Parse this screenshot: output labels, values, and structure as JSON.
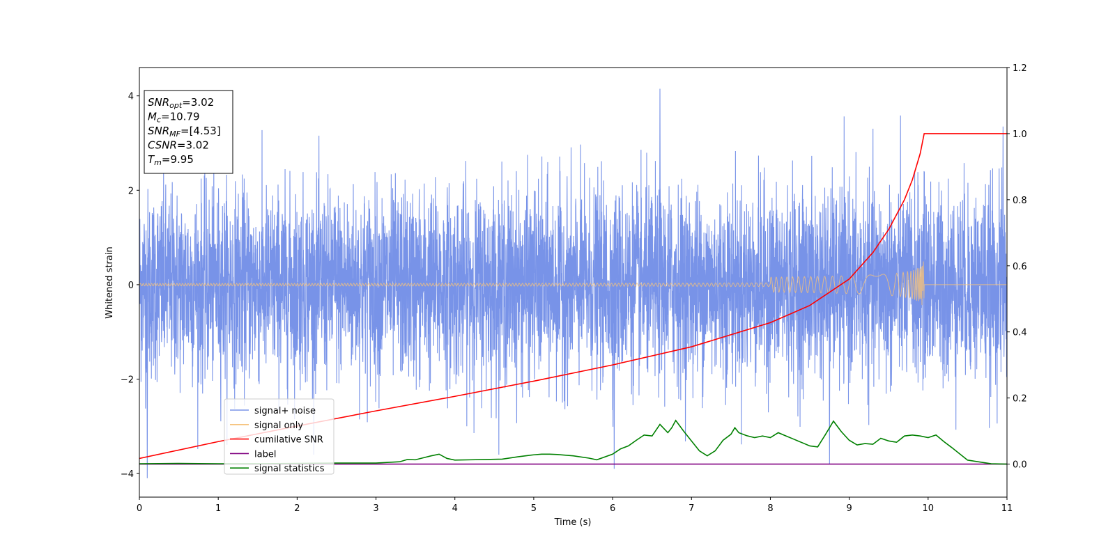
{
  "chart_data": {
    "type": "line",
    "xlabel": "Time (s)",
    "ylabel": "Whitened strain",
    "xlim": [
      0,
      11
    ],
    "ylim": [
      -4.5,
      4.6
    ],
    "y2lim": [
      -0.1,
      1.2
    ],
    "xticks": [
      0,
      1,
      2,
      3,
      4,
      5,
      6,
      7,
      8,
      9,
      10,
      11
    ],
    "yticks": [
      -4,
      -2,
      0,
      2,
      4
    ],
    "y2ticks": [
      "0.0",
      "0.2",
      "0.4",
      "0.6",
      "0.8",
      "1.0",
      "1.2"
    ],
    "legend_position": "lower-left",
    "grid": false,
    "info_box": [
      {
        "name": "SNR",
        "sub": "opt",
        "value": "=3.02"
      },
      {
        "name": "M",
        "sub": "c",
        "value": "=10.79"
      },
      {
        "name": "SNR",
        "sub": "MF",
        "value": "=[4.53]"
      },
      {
        "name": "CSNR",
        "sub": "",
        "value": "=3.02"
      },
      {
        "name": "T",
        "sub": "m",
        "value": "=9.95"
      }
    ],
    "series": [
      {
        "name": "signal+ noise",
        "color": "#7893e8",
        "axis": "left",
        "description_range": [
          -4.1,
          4.2
        ],
        "notable_spikes": [
          {
            "x": 0.1,
            "y": -4.1
          },
          {
            "x": 6.02,
            "y": -3.9
          },
          {
            "x": 6.6,
            "y": 4.15
          },
          {
            "x": 8.75,
            "y": -3.8
          },
          {
            "x": 10.95,
            "y": 3.35
          }
        ]
      },
      {
        "name": "signal only",
        "color": "#f5c27a",
        "axis": "left",
        "chirp_end_x": 9.95,
        "peak_amplitude": 0.5
      },
      {
        "name": "cumilative SNR",
        "color": "#ff0000",
        "axis": "right",
        "x": [
          0,
          1,
          2,
          3,
          4,
          5,
          6,
          7,
          8,
          8.5,
          9,
          9.3,
          9.5,
          9.7,
          9.8,
          9.9,
          9.95,
          11
        ],
        "values": [
          0.017,
          0.068,
          0.115,
          0.161,
          0.205,
          0.251,
          0.3,
          0.355,
          0.428,
          0.48,
          0.56,
          0.64,
          0.71,
          0.8,
          0.86,
          0.94,
          1.0,
          1.0
        ]
      },
      {
        "name": "label",
        "color": "#800080",
        "axis": "right",
        "x": [
          0,
          11
        ],
        "values": [
          0,
          0
        ]
      },
      {
        "name": "signal statistics",
        "color": "#008000",
        "axis": "right",
        "x": [
          0,
          0.5,
          1,
          1.5,
          2,
          2.5,
          3,
          3.3,
          3.4,
          3.5,
          3.6,
          3.7,
          3.8,
          3.9,
          4.0,
          4.2,
          4.4,
          4.6,
          4.8,
          5.0,
          5.1,
          5.2,
          5.3,
          5.5,
          5.7,
          5.8,
          6.0,
          6.1,
          6.2,
          6.3,
          6.4,
          6.5,
          6.6,
          6.7,
          6.75,
          6.8,
          6.9,
          7.0,
          7.1,
          7.2,
          7.3,
          7.4,
          7.5,
          7.55,
          7.6,
          7.7,
          7.8,
          7.9,
          8.0,
          8.1,
          8.2,
          8.3,
          8.4,
          8.5,
          8.6,
          8.7,
          8.8,
          8.9,
          9.0,
          9.1,
          9.2,
          9.3,
          9.4,
          9.5,
          9.6,
          9.7,
          9.8,
          9.9,
          10.0,
          10.1,
          10.2,
          10.3,
          10.5,
          10.8,
          11.0
        ],
        "values": [
          0.001,
          0.002,
          0.001,
          0.001,
          0.002,
          0.003,
          0.003,
          0.007,
          0.014,
          0.013,
          0.019,
          0.025,
          0.03,
          0.017,
          0.012,
          0.013,
          0.014,
          0.015,
          0.022,
          0.028,
          0.03,
          0.03,
          0.029,
          0.025,
          0.018,
          0.013,
          0.03,
          0.046,
          0.055,
          0.072,
          0.088,
          0.085,
          0.12,
          0.095,
          0.11,
          0.132,
          0.1,
          0.07,
          0.04,
          0.025,
          0.04,
          0.072,
          0.09,
          0.11,
          0.095,
          0.086,
          0.08,
          0.085,
          0.08,
          0.095,
          0.085,
          0.075,
          0.065,
          0.055,
          0.052,
          0.09,
          0.13,
          0.098,
          0.072,
          0.058,
          0.062,
          0.06,
          0.078,
          0.07,
          0.066,
          0.085,
          0.088,
          0.085,
          0.08,
          0.088,
          0.068,
          0.05,
          0.012,
          0.001,
          0.0
        ]
      }
    ]
  }
}
